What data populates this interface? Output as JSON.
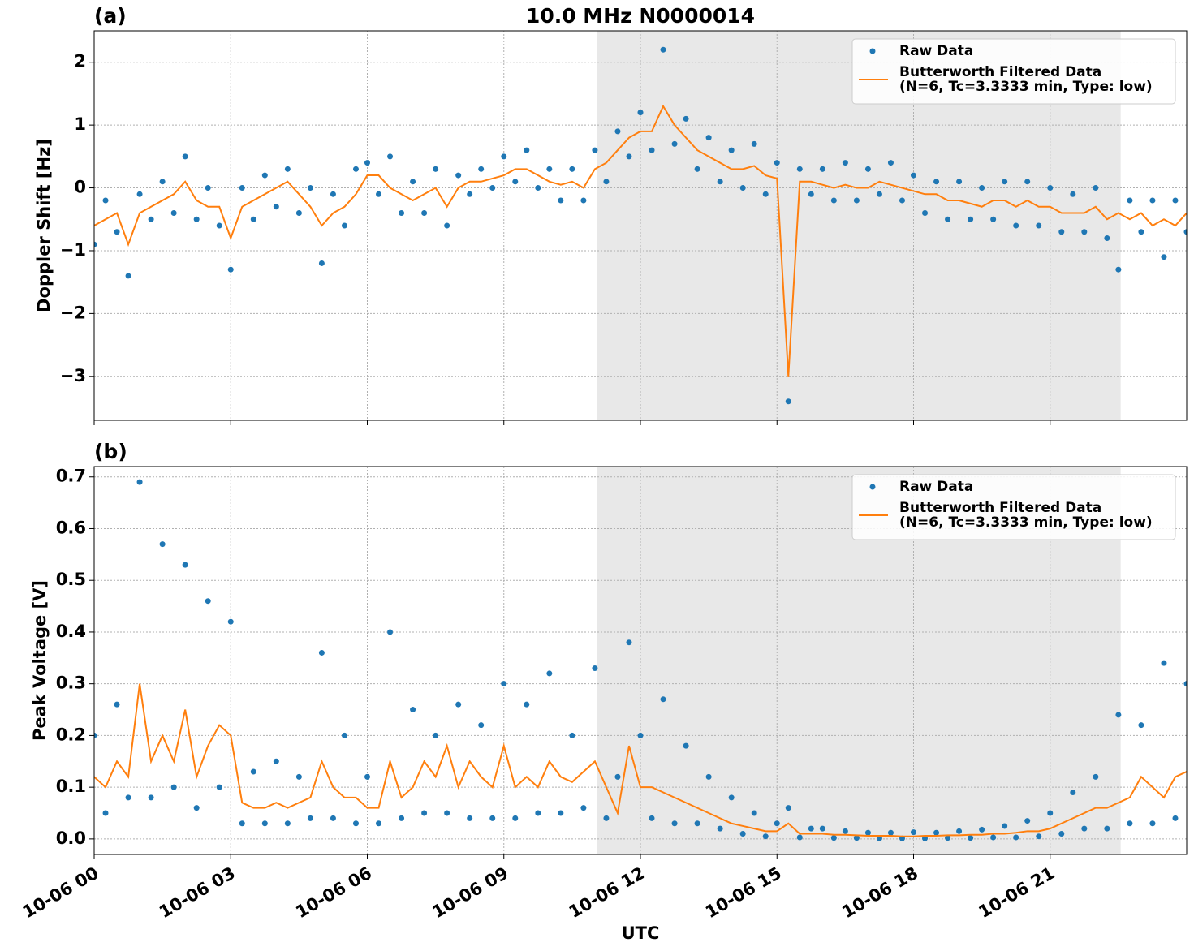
{
  "chart_data": [
    {
      "type": "scatter-line",
      "panel_label": "(a)",
      "title": "10.0 MHz N0000014",
      "ylabel": "Doppler Shift [Hz]",
      "xlim": [
        0,
        24
      ],
      "xticks": [
        0,
        3,
        6,
        9,
        12,
        15,
        18,
        21
      ],
      "ylim": [
        -3.7,
        2.5
      ],
      "yticks": [
        {
          "value": -3,
          "label": "−3"
        },
        {
          "value": -2,
          "label": "−2"
        },
        {
          "value": -1,
          "label": "−1"
        },
        0,
        1,
        2
      ],
      "grid": true,
      "legend": "upper right",
      "span": [
        11.05,
        22.55
      ],
      "span_color": "#e8e8e8",
      "x": [
        0,
        0.25,
        0.5,
        0.75,
        1,
        1.25,
        1.5,
        1.75,
        2,
        2.25,
        2.5,
        2.75,
        3,
        3.25,
        3.5,
        3.75,
        4,
        4.25,
        4.5,
        4.75,
        5,
        5.25,
        5.5,
        5.75,
        6,
        6.25,
        6.5,
        6.75,
        7,
        7.25,
        7.5,
        7.75,
        8,
        8.25,
        8.5,
        8.75,
        9,
        9.25,
        9.5,
        9.75,
        10,
        10.25,
        10.5,
        10.75,
        11,
        11.25,
        11.5,
        11.75,
        12,
        12.25,
        12.5,
        12.75,
        13,
        13.25,
        13.5,
        13.75,
        14,
        14.25,
        14.5,
        14.75,
        15,
        15.25,
        15.5,
        15.75,
        16,
        16.25,
        16.5,
        16.75,
        17,
        17.25,
        17.5,
        17.75,
        18,
        18.25,
        18.5,
        18.75,
        19,
        19.25,
        19.5,
        19.75,
        20,
        20.25,
        20.5,
        20.75,
        21,
        21.25,
        21.5,
        21.75,
        22,
        22.25,
        22.5,
        22.75,
        23,
        23.25,
        23.5,
        23.75,
        24
      ],
      "series": [
        {
          "name": [
            "Raw Data"
          ],
          "style": "dots",
          "color": "#1f77b4",
          "values": [
            -0.9,
            -0.2,
            -0.7,
            -1.4,
            -0.1,
            -0.5,
            0.1,
            -0.4,
            0.5,
            -0.5,
            0.0,
            -0.6,
            -1.3,
            0.0,
            -0.5,
            0.2,
            -0.3,
            0.3,
            -0.4,
            0.0,
            -1.2,
            -0.1,
            -0.6,
            0.3,
            0.4,
            -0.1,
            0.5,
            -0.4,
            0.1,
            -0.4,
            0.3,
            -0.6,
            0.2,
            -0.1,
            0.3,
            0.0,
            0.5,
            0.1,
            0.6,
            0.0,
            0.3,
            -0.2,
            0.3,
            -0.2,
            0.6,
            0.1,
            0.9,
            0.5,
            1.2,
            0.6,
            2.2,
            0.7,
            1.1,
            0.3,
            0.8,
            0.1,
            0.6,
            0.0,
            0.7,
            -0.1,
            0.4,
            -3.4,
            0.3,
            -0.1,
            0.3,
            -0.2,
            0.4,
            -0.2,
            0.3,
            -0.1,
            0.4,
            -0.2,
            0.2,
            -0.4,
            0.1,
            -0.5,
            0.1,
            -0.5,
            0.0,
            -0.5,
            0.1,
            -0.6,
            0.1,
            -0.6,
            0.0,
            -0.7,
            -0.1,
            -0.7,
            0.0,
            -0.8,
            -1.3,
            -0.2,
            -0.7,
            -0.2,
            -1.1,
            -0.2,
            -0.7
          ]
        },
        {
          "name": [
            "Butterworth Filtered Data",
            "(N=6, Tc=3.3333 min, Type: low)"
          ],
          "style": "line",
          "color": "#ff7f0e",
          "values": [
            -0.6,
            -0.5,
            -0.4,
            -0.9,
            -0.4,
            -0.3,
            -0.2,
            -0.1,
            0.1,
            -0.2,
            -0.3,
            -0.3,
            -0.8,
            -0.3,
            -0.2,
            -0.1,
            0.0,
            0.1,
            -0.1,
            -0.3,
            -0.6,
            -0.4,
            -0.3,
            -0.1,
            0.2,
            0.2,
            0.0,
            -0.1,
            -0.2,
            -0.1,
            0.0,
            -0.3,
            0.0,
            0.1,
            0.1,
            0.15,
            0.2,
            0.3,
            0.3,
            0.2,
            0.1,
            0.05,
            0.1,
            0.0,
            0.3,
            0.4,
            0.6,
            0.8,
            0.9,
            0.9,
            1.3,
            1.0,
            0.8,
            0.6,
            0.5,
            0.4,
            0.3,
            0.3,
            0.35,
            0.2,
            0.15,
            -3.0,
            0.1,
            0.1,
            0.05,
            0.0,
            0.05,
            0.0,
            0.0,
            0.1,
            0.05,
            0.0,
            -0.05,
            -0.1,
            -0.1,
            -0.2,
            -0.2,
            -0.25,
            -0.3,
            -0.2,
            -0.2,
            -0.3,
            -0.2,
            -0.3,
            -0.3,
            -0.4,
            -0.4,
            -0.4,
            -0.3,
            -0.5,
            -0.4,
            -0.5,
            -0.4,
            -0.6,
            -0.5,
            -0.6,
            -0.4
          ]
        }
      ]
    },
    {
      "type": "scatter-line",
      "panel_label": "(b)",
      "ylabel": "Peak Voltage [V]",
      "xlabel": "UTC",
      "xlim": [
        0,
        24
      ],
      "xticks": [
        {
          "value": 0,
          "label": "10-06 00"
        },
        {
          "value": 3,
          "label": "10-06 03"
        },
        {
          "value": 6,
          "label": "10-06 06"
        },
        {
          "value": 9,
          "label": "10-06 09"
        },
        {
          "value": 12,
          "label": "10-06 12"
        },
        {
          "value": 15,
          "label": "10-06 15"
        },
        {
          "value": 18,
          "label": "10-06 18"
        },
        {
          "value": 21,
          "label": "10-06 21"
        }
      ],
      "ylim": [
        -0.03,
        0.72
      ],
      "yticks": [
        {
          "value": 0,
          "label": "0.0"
        },
        0.1,
        0.2,
        0.3,
        0.4,
        0.5,
        0.6,
        0.7
      ],
      "grid": true,
      "legend": "upper right",
      "span": [
        11.05,
        22.55
      ],
      "span_color": "#e8e8e8",
      "x": [
        0,
        0.25,
        0.5,
        0.75,
        1,
        1.25,
        1.5,
        1.75,
        2,
        2.25,
        2.5,
        2.75,
        3,
        3.25,
        3.5,
        3.75,
        4,
        4.25,
        4.5,
        4.75,
        5,
        5.25,
        5.5,
        5.75,
        6,
        6.25,
        6.5,
        6.75,
        7,
        7.25,
        7.5,
        7.75,
        8,
        8.25,
        8.5,
        8.75,
        9,
        9.25,
        9.5,
        9.75,
        10,
        10.25,
        10.5,
        10.75,
        11,
        11.25,
        11.5,
        11.75,
        12,
        12.25,
        12.5,
        12.75,
        13,
        13.25,
        13.5,
        13.75,
        14,
        14.25,
        14.5,
        14.75,
        15,
        15.25,
        15.5,
        15.75,
        16,
        16.25,
        16.5,
        16.75,
        17,
        17.25,
        17.5,
        17.75,
        18,
        18.25,
        18.5,
        18.75,
        19,
        19.25,
        19.5,
        19.75,
        20,
        20.25,
        20.5,
        20.75,
        21,
        21.25,
        21.5,
        21.75,
        22,
        22.25,
        22.5,
        22.75,
        23,
        23.25,
        23.5,
        23.75,
        24
      ],
      "series": [
        {
          "name": [
            "Raw Data"
          ],
          "style": "dots",
          "color": "#1f77b4",
          "values": [
            0.2,
            0.05,
            0.26,
            0.08,
            0.69,
            0.08,
            0.57,
            0.1,
            0.53,
            0.06,
            0.46,
            0.1,
            0.42,
            0.03,
            0.13,
            0.03,
            0.15,
            0.03,
            0.12,
            0.04,
            0.36,
            0.04,
            0.2,
            0.03,
            0.12,
            0.03,
            0.4,
            0.04,
            0.25,
            0.05,
            0.2,
            0.05,
            0.26,
            0.04,
            0.22,
            0.04,
            0.3,
            0.04,
            0.26,
            0.05,
            0.32,
            0.05,
            0.2,
            0.06,
            0.33,
            0.04,
            0.12,
            0.38,
            0.2,
            0.04,
            0.27,
            0.03,
            0.18,
            0.03,
            0.12,
            0.02,
            0.08,
            0.01,
            0.05,
            0.005,
            0.03,
            0.06,
            0.003,
            0.02,
            0.02,
            0.002,
            0.015,
            0.002,
            0.012,
            0.001,
            0.012,
            0.001,
            0.013,
            0.001,
            0.012,
            0.002,
            0.015,
            0.002,
            0.018,
            0.003,
            0.025,
            0.003,
            0.035,
            0.005,
            0.05,
            0.01,
            0.09,
            0.02,
            0.12,
            0.02,
            0.24,
            0.03,
            0.22,
            0.03,
            0.34,
            0.04,
            0.3
          ]
        },
        {
          "name": [
            "Butterworth Filtered Data",
            "(N=6, Tc=3.3333 min, Type: low)"
          ],
          "style": "line",
          "color": "#ff7f0e",
          "values": [
            0.12,
            0.1,
            0.15,
            0.12,
            0.3,
            0.15,
            0.2,
            0.15,
            0.25,
            0.12,
            0.18,
            0.22,
            0.2,
            0.07,
            0.06,
            0.06,
            0.07,
            0.06,
            0.07,
            0.08,
            0.15,
            0.1,
            0.08,
            0.08,
            0.06,
            0.06,
            0.15,
            0.08,
            0.1,
            0.15,
            0.12,
            0.18,
            0.1,
            0.15,
            0.12,
            0.1,
            0.18,
            0.1,
            0.12,
            0.1,
            0.15,
            0.12,
            0.11,
            0.13,
            0.15,
            0.1,
            0.05,
            0.18,
            0.1,
            0.1,
            0.09,
            0.08,
            0.07,
            0.06,
            0.05,
            0.04,
            0.03,
            0.025,
            0.02,
            0.015,
            0.015,
            0.03,
            0.01,
            0.01,
            0.01,
            0.008,
            0.008,
            0.007,
            0.006,
            0.006,
            0.006,
            0.005,
            0.005,
            0.006,
            0.006,
            0.007,
            0.007,
            0.008,
            0.008,
            0.01,
            0.01,
            0.012,
            0.015,
            0.015,
            0.02,
            0.03,
            0.04,
            0.05,
            0.06,
            0.06,
            0.07,
            0.08,
            0.12,
            0.1,
            0.08,
            0.12,
            0.13
          ]
        }
      ]
    }
  ]
}
